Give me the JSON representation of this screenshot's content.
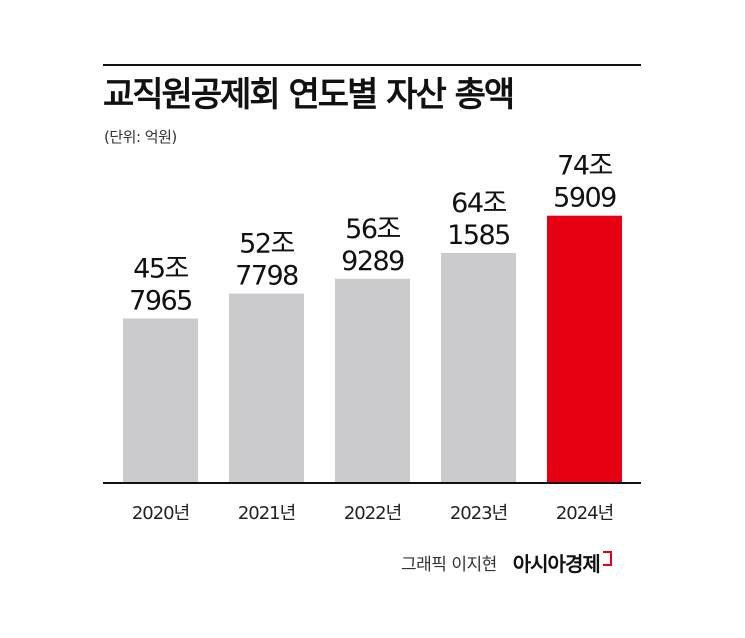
{
  "title": "교직원공제회 연도별 자산 총액",
  "unit": "(단위: 억원)",
  "credit": "그래픽 이지현",
  "brand": "아시아경제",
  "colors": {
    "default_bar": "#cbcbcd",
    "highlight_bar": "#e60012",
    "axis": "#111111"
  },
  "chart_data": {
    "type": "bar",
    "title": "교직원공제회 연도별 자산 총액",
    "unit": "억원",
    "categories": [
      "2020년",
      "2021년",
      "2022년",
      "2023년",
      "2024년"
    ],
    "values": [
      457965,
      527798,
      569289,
      641585,
      745909
    ],
    "value_labels": [
      [
        "45조",
        "7965"
      ],
      [
        "52조",
        "7798"
      ],
      [
        "56조",
        "9289"
      ],
      [
        "64조",
        "1585"
      ],
      [
        "74조",
        "5909"
      ]
    ],
    "highlight_index": 4,
    "grid": false,
    "legend": "none"
  }
}
